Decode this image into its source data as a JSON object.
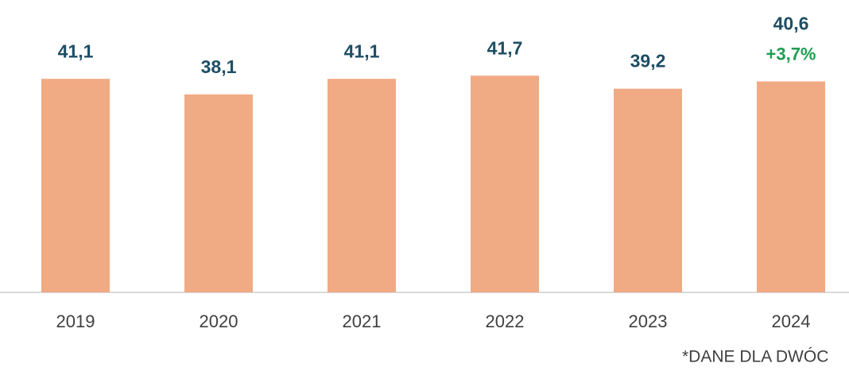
{
  "chart_data": {
    "type": "bar",
    "categories": [
      "2019",
      "2020",
      "2021",
      "2022",
      "2023",
      "2024"
    ],
    "values": [
      41.1,
      38.1,
      41.1,
      41.7,
      39.2,
      40.6
    ],
    "value_labels": [
      "41,1",
      "38,1",
      "41,1",
      "41,7",
      "39,2",
      "40,6"
    ],
    "value_notes": [
      null,
      null,
      null,
      null,
      null,
      "+3,7%"
    ],
    "color": "#f0aa84",
    "ylim": [
      0,
      50
    ],
    "footnote": "*DANE DLA DWÓC"
  }
}
